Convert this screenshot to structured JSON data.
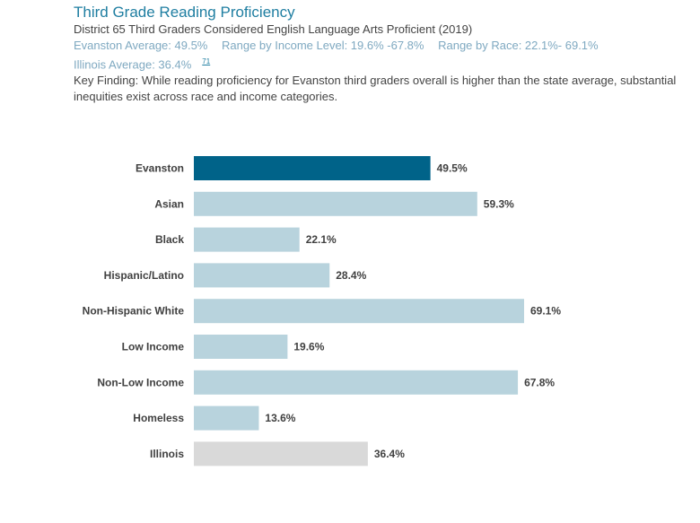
{
  "header": {
    "title": "Third Grade Reading Proficiency",
    "subtitle": "District 65 Third Graders Considered English Language Arts Proficient (2019)",
    "stats": {
      "evanston_avg": "Evanston Average: 49.5%",
      "range_income": "Range by Income Level: 19.6% -67.8%",
      "range_race": "Range by Race: 22.1%- 69.1%",
      "illinois_avg": "Illinois Average: 36.4%",
      "footnote": "71"
    },
    "key_finding": "Key Finding: While reading proficiency for Evanston third graders overall is higher than the state average, substantial inequities exist across race and income categories."
  },
  "colors": {
    "evanston": "#006389",
    "group": "#b8d3dd",
    "illinois": "#d9d9d9"
  },
  "chart_data": {
    "type": "bar",
    "orientation": "horizontal",
    "title": "Third Grade Reading Proficiency",
    "xlabel": "",
    "ylabel": "",
    "xlim": [
      0,
      69.1
    ],
    "grid": false,
    "categories": [
      "Evanston",
      "Asian",
      "Black",
      "Hispanic/Latino",
      "Non-Hispanic White",
      "Low Income",
      "Non-Low Income",
      "Homeless",
      "Illinois"
    ],
    "values": [
      49.5,
      59.3,
      22.1,
      28.4,
      69.1,
      19.6,
      67.8,
      13.6,
      36.4
    ],
    "value_labels": [
      "49.5%",
      "59.3%",
      "22.1%",
      "28.4%",
      "69.1%",
      "19.6%",
      "67.8%",
      "13.6%",
      "36.4%"
    ],
    "bar_kinds": [
      "evanston",
      "group",
      "group",
      "group",
      "group",
      "group",
      "group",
      "group",
      "illinois"
    ]
  }
}
